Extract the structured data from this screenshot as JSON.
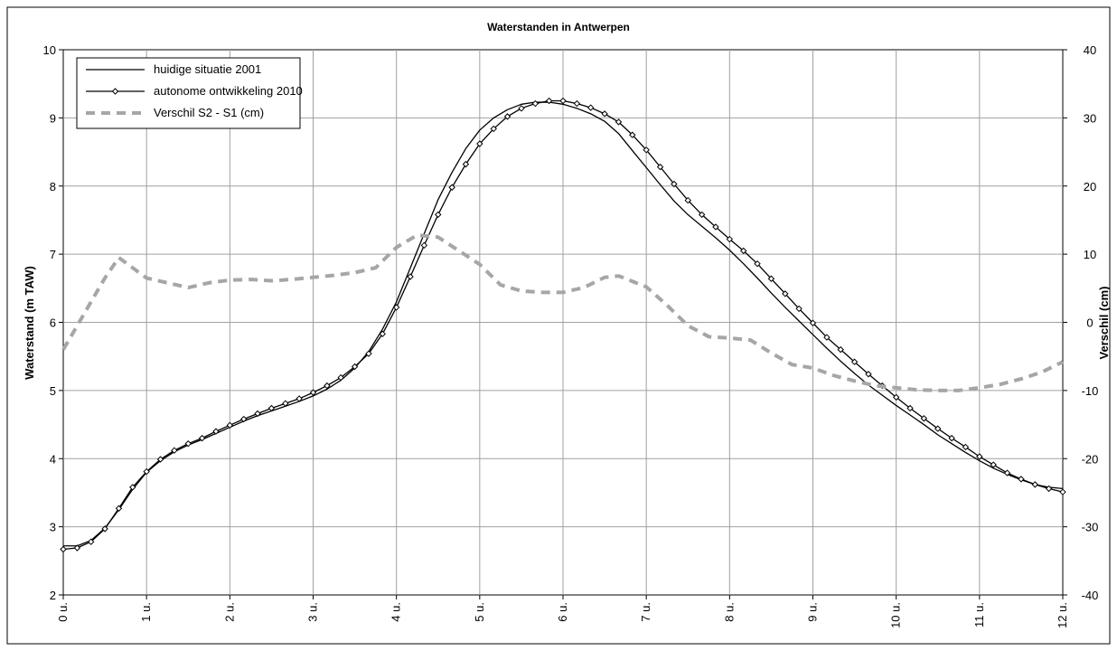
{
  "chart_data": {
    "type": "line",
    "title": "Waterstanden in Antwerpen",
    "xlabel": "",
    "ylabel": "Waterstand (m TAW)",
    "y2label": "Verschil (cm)",
    "x_tick_labels": [
      "0 u.",
      "1 u.",
      "2 u.",
      "3 u.",
      "4 u.",
      "5 u.",
      "6 u.",
      "7 u.",
      "8 u.",
      "9 u.",
      "10 u.",
      "11 u.",
      "12 u."
    ],
    "xlim": [
      0,
      12
    ],
    "ylim": [
      2,
      10
    ],
    "y2lim": [
      -40,
      40
    ],
    "y_ticks": [
      "2",
      "3",
      "4",
      "5",
      "6",
      "7",
      "8",
      "9",
      "10"
    ],
    "y2_ticks": [
      "-40",
      "-30",
      "-20",
      "-10",
      "0",
      "10",
      "20",
      "30",
      "40"
    ],
    "grid": true,
    "legend_position": "top-left",
    "series": [
      {
        "name": "huidige situatie 2001",
        "axis": "left",
        "color": "#000000",
        "style": "solid",
        "marker": "none",
        "x": [
          0,
          0.167,
          0.333,
          0.5,
          0.667,
          0.833,
          1.0,
          1.167,
          1.333,
          1.5,
          1.667,
          1.833,
          2.0,
          2.167,
          2.333,
          2.5,
          2.667,
          2.833,
          3.0,
          3.167,
          3.333,
          3.5,
          3.667,
          3.833,
          4.0,
          4.167,
          4.333,
          4.5,
          4.667,
          4.833,
          5.0,
          5.167,
          5.333,
          5.5,
          5.667,
          5.833,
          6.0,
          6.167,
          6.333,
          6.5,
          6.667,
          6.833,
          7.0,
          7.167,
          7.333,
          7.5,
          7.667,
          7.833,
          8.0,
          8.167,
          8.333,
          8.5,
          8.667,
          8.833,
          9.0,
          9.167,
          9.333,
          9.5,
          9.667,
          9.833,
          10.0,
          10.167,
          10.333,
          10.5,
          10.667,
          10.833,
          11.0,
          11.167,
          11.333,
          11.5,
          11.667,
          11.833,
          12.0
        ],
        "y": [
          2.72,
          2.72,
          2.8,
          2.98,
          3.25,
          3.55,
          3.8,
          3.97,
          4.1,
          4.2,
          4.28,
          4.37,
          4.46,
          4.55,
          4.63,
          4.7,
          4.77,
          4.84,
          4.92,
          5.02,
          5.15,
          5.33,
          5.57,
          5.9,
          6.3,
          6.8,
          7.3,
          7.8,
          8.2,
          8.55,
          8.82,
          9.0,
          9.12,
          9.2,
          9.23,
          9.23,
          9.2,
          9.14,
          9.06,
          8.95,
          8.77,
          8.52,
          8.27,
          8.02,
          7.78,
          7.58,
          7.41,
          7.24,
          7.06,
          6.86,
          6.65,
          6.43,
          6.22,
          6.02,
          5.82,
          5.62,
          5.43,
          5.25,
          5.08,
          4.93,
          4.78,
          4.64,
          4.5,
          4.35,
          4.22,
          4.09,
          3.97,
          3.86,
          3.77,
          3.69,
          3.62,
          3.58,
          3.56
        ]
      },
      {
        "name": "autonome ontwikkeling 2010",
        "axis": "left",
        "color": "#000000",
        "style": "solid",
        "marker": "diamond",
        "x": [
          0,
          0.167,
          0.333,
          0.5,
          0.667,
          0.833,
          1.0,
          1.167,
          1.333,
          1.5,
          1.667,
          1.833,
          2.0,
          2.167,
          2.333,
          2.5,
          2.667,
          2.833,
          3.0,
          3.167,
          3.333,
          3.5,
          3.667,
          3.833,
          4.0,
          4.167,
          4.333,
          4.5,
          4.667,
          4.833,
          5.0,
          5.167,
          5.333,
          5.5,
          5.667,
          5.833,
          6.0,
          6.167,
          6.333,
          6.5,
          6.667,
          6.833,
          7.0,
          7.167,
          7.333,
          7.5,
          7.667,
          7.833,
          8.0,
          8.167,
          8.333,
          8.5,
          8.667,
          8.833,
          9.0,
          9.167,
          9.333,
          9.5,
          9.667,
          9.833,
          10.0,
          10.167,
          10.333,
          10.5,
          10.667,
          10.833,
          11.0,
          11.167,
          11.333,
          11.5,
          11.667,
          11.833,
          12.0
        ],
        "y": [
          2.67,
          2.69,
          2.78,
          2.97,
          3.27,
          3.58,
          3.81,
          3.99,
          4.12,
          4.22,
          4.3,
          4.4,
          4.49,
          4.58,
          4.66,
          4.74,
          4.81,
          4.88,
          4.97,
          5.07,
          5.19,
          5.35,
          5.54,
          5.83,
          6.22,
          6.67,
          7.13,
          7.58,
          7.98,
          8.32,
          8.62,
          8.84,
          9.02,
          9.14,
          9.21,
          9.25,
          9.25,
          9.21,
          9.15,
          9.06,
          8.94,
          8.75,
          8.53,
          8.28,
          8.03,
          7.79,
          7.58,
          7.4,
          7.22,
          7.05,
          6.86,
          6.64,
          6.42,
          6.2,
          5.99,
          5.78,
          5.6,
          5.42,
          5.24,
          5.07,
          4.9,
          4.74,
          4.59,
          4.44,
          4.3,
          4.17,
          4.03,
          3.91,
          3.79,
          3.7,
          3.62,
          3.56,
          3.51
        ]
      },
      {
        "name": "Verschil S2 - S1  (cm)",
        "axis": "right",
        "color": "#a6a6a6",
        "style": "dashed",
        "marker": "none",
        "x": [
          0,
          0.167,
          0.333,
          0.5,
          0.667,
          0.833,
          1.0,
          1.25,
          1.5,
          1.75,
          2.0,
          2.25,
          2.5,
          2.75,
          3.0,
          3.25,
          3.5,
          3.75,
          4.0,
          4.25,
          4.5,
          4.75,
          5.0,
          5.25,
          5.5,
          5.75,
          6.0,
          6.25,
          6.5,
          6.67,
          7.0,
          7.25,
          7.5,
          7.75,
          8.0,
          8.25,
          8.5,
          8.75,
          9.0,
          9.25,
          9.5,
          9.75,
          10.0,
          10.25,
          10.5,
          10.75,
          11.0,
          11.25,
          11.5,
          11.75,
          12.0
        ],
        "y": [
          -4,
          -0.5,
          3,
          6.5,
          9.5,
          8,
          6.5,
          5.8,
          5.1,
          5.8,
          6.2,
          6.3,
          6.1,
          6.3,
          6.6,
          6.9,
          7.3,
          8,
          11,
          12.8,
          12.5,
          10.5,
          8.5,
          5.5,
          4.6,
          4.4,
          4.4,
          5.1,
          6.6,
          6.8,
          5.2,
          2.5,
          -0.5,
          -2.1,
          -2.3,
          -2.6,
          -4.5,
          -6.2,
          -6.7,
          -7.8,
          -8.6,
          -9.3,
          -9.6,
          -9.9,
          -10.0,
          -10.0,
          -9.6,
          -9.1,
          -8.3,
          -7.3,
          -5.8
        ]
      }
    ]
  }
}
